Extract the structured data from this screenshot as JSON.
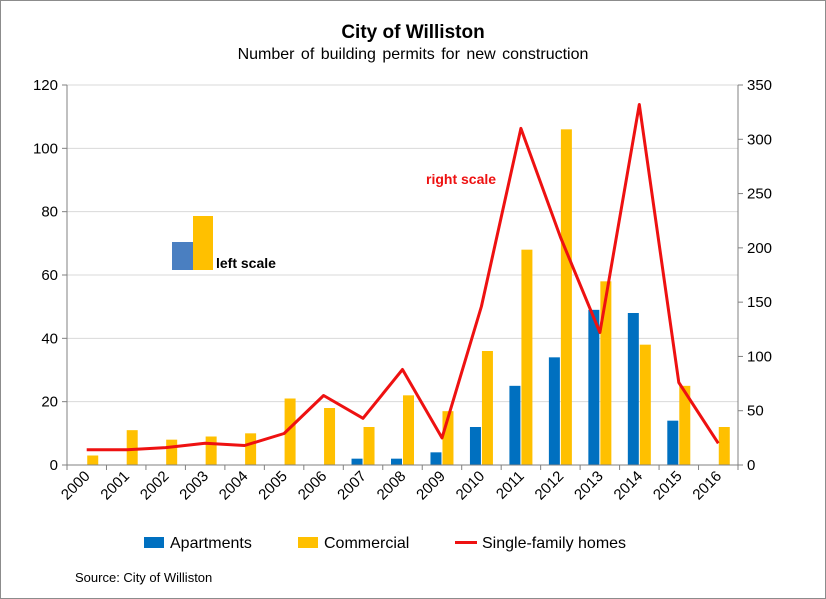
{
  "chart_data": {
    "type": "bar",
    "title": "City of Williston",
    "subtitle": "Number  of building  permits for new construction",
    "categories": [
      "2000",
      "2001",
      "2002",
      "2003",
      "2004",
      "2005",
      "2006",
      "2007",
      "2008",
      "2009",
      "2010",
      "2011",
      "2012",
      "2013",
      "2014",
      "2015",
      "2016"
    ],
    "series": [
      {
        "name": "Apartments",
        "type": "bar",
        "axis": "left",
        "color": "#0070C0",
        "values": [
          0,
          0,
          0,
          0,
          0,
          0,
          0,
          2,
          2,
          4,
          12,
          25,
          34,
          49,
          48,
          14,
          0
        ]
      },
      {
        "name": "Commercial",
        "type": "bar",
        "axis": "left",
        "color": "#FFC000",
        "values": [
          3,
          11,
          8,
          9,
          10,
          21,
          18,
          12,
          22,
          17,
          36,
          68,
          106,
          58,
          38,
          25,
          12
        ]
      },
      {
        "name": "Single-family homes",
        "type": "line",
        "axis": "right",
        "color": "#EE1111",
        "values": [
          14,
          14,
          16,
          20,
          18,
          29,
          64,
          43,
          88,
          25,
          146,
          310,
          210,
          122,
          332,
          76,
          20
        ]
      }
    ],
    "y_left": {
      "min": 0,
      "max": 120,
      "ticks": [
        0,
        20,
        40,
        60,
        80,
        100,
        120
      ]
    },
    "y_right": {
      "min": 0,
      "max": 350,
      "ticks": [
        0,
        50,
        100,
        150,
        200,
        250,
        300,
        350
      ]
    },
    "annotations": {
      "right_scale": "right scale",
      "left_scale": "left scale"
    },
    "grid": "horizontal-left-major",
    "legend_position": "bottom"
  },
  "source": "Source:  City of Williston"
}
